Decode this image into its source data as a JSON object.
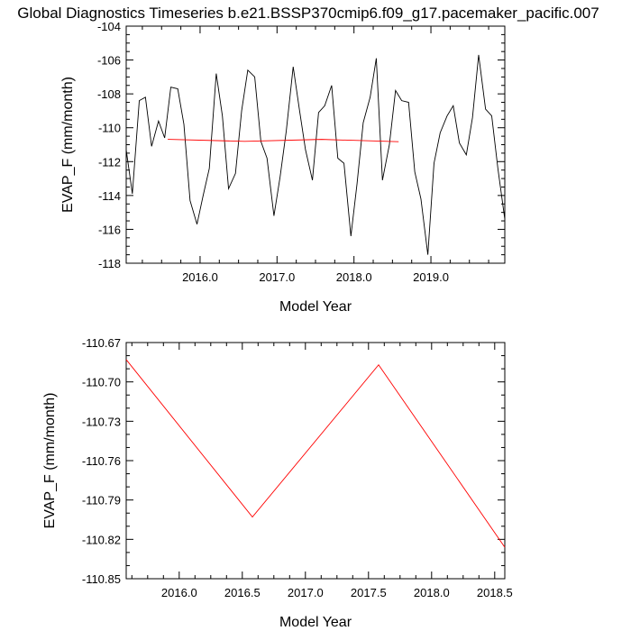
{
  "title": "Global Diagnostics Timeseries b.e21.BSSP370cmip6.f09_g17.pacemaker_pacific.007",
  "colors": {
    "monthly": "#000000",
    "annual": "#ff0000",
    "axis": "#000000"
  },
  "chart_data": [
    {
      "type": "line",
      "xlabel": "Model Year",
      "ylabel": "EVAP_F (mm/month)",
      "xlim": [
        2015.04,
        2019.96
      ],
      "ylim": [
        -118,
        -104
      ],
      "xticks": [
        2016.0,
        2017.0,
        2018.0,
        2019.0
      ],
      "xtick_labels": [
        "2016.0",
        "2017.0",
        "2018.0",
        "2019.0"
      ],
      "yticks": [
        -118,
        -116,
        -114,
        -112,
        -110,
        -108,
        -106,
        -104
      ],
      "ytick_labels": [
        "-118",
        "-116",
        "-114",
        "-112",
        "-110",
        "-108",
        "-106",
        "-104"
      ],
      "series": [
        {
          "color": "#000000",
          "x": [
            2015.04,
            2015.12,
            2015.21,
            2015.29,
            2015.37,
            2015.46,
            2015.54,
            2015.62,
            2015.71,
            2015.79,
            2015.87,
            2015.96,
            2016.04,
            2016.12,
            2016.21,
            2016.29,
            2016.37,
            2016.46,
            2016.54,
            2016.62,
            2016.71,
            2016.79,
            2016.87,
            2016.96,
            2017.04,
            2017.12,
            2017.21,
            2017.29,
            2017.37,
            2017.46,
            2017.54,
            2017.62,
            2017.71,
            2017.79,
            2017.87,
            2017.96,
            2018.04,
            2018.12,
            2018.21,
            2018.29,
            2018.37,
            2018.46,
            2018.54,
            2018.62,
            2018.71,
            2018.79,
            2018.87,
            2018.96,
            2019.04,
            2019.12,
            2019.21,
            2019.29,
            2019.37,
            2019.46,
            2019.54,
            2019.62,
            2019.71,
            2019.79,
            2019.87,
            2019.96
          ],
          "y": [
            -111.3,
            -113.9,
            -108.4,
            -108.2,
            -111.1,
            -109.6,
            -110.6,
            -107.6,
            -107.7,
            -109.8,
            -114.3,
            -115.7,
            -114.0,
            -112.4,
            -106.8,
            -109.3,
            -113.6,
            -112.7,
            -109.0,
            -106.6,
            -107.0,
            -110.8,
            -111.8,
            -115.2,
            -112.9,
            -110.2,
            -106.4,
            -108.9,
            -111.3,
            -113.1,
            -109.1,
            -108.7,
            -107.5,
            -111.8,
            -112.1,
            -116.4,
            -113.3,
            -109.7,
            -108.2,
            -105.9,
            -113.1,
            -111.0,
            -107.8,
            -108.4,
            -108.5,
            -112.6,
            -114.2,
            -117.5,
            -112.1,
            -110.3,
            -109.3,
            -108.7,
            -110.9,
            -111.6,
            -109.4,
            -105.7,
            -108.9,
            -109.3,
            -112.4,
            -115.4
          ]
        },
        {
          "color": "#ff0000",
          "x": [
            2015.58,
            2016.58,
            2017.58,
            2018.58
          ],
          "y": [
            -110.683,
            -110.803,
            -110.687,
            -110.826
          ]
        }
      ]
    },
    {
      "type": "line",
      "xlabel": "Model Year",
      "ylabel": "EVAP_F (mm/month)",
      "xlim": [
        2015.58,
        2018.58
      ],
      "ylim": [
        -110.85,
        -110.67
      ],
      "xticks": [
        2016.0,
        2016.5,
        2017.0,
        2017.5,
        2018.0,
        2018.5
      ],
      "xtick_labels": [
        "2016.0",
        "2016.5",
        "2017.0",
        "2017.5",
        "2018.0",
        "2018.5"
      ],
      "yticks": [
        -110.85,
        -110.82,
        -110.79,
        -110.76,
        -110.73,
        -110.7,
        -110.67
      ],
      "ytick_labels": [
        "-110.85",
        "-110.82",
        "-110.79",
        "-110.76",
        "-110.73",
        "-110.70",
        "-110.67"
      ],
      "series": [
        {
          "color": "#ff0000",
          "x": [
            2015.58,
            2016.58,
            2017.58,
            2018.58
          ],
          "y": [
            -110.683,
            -110.803,
            -110.687,
            -110.826
          ]
        }
      ]
    }
  ]
}
